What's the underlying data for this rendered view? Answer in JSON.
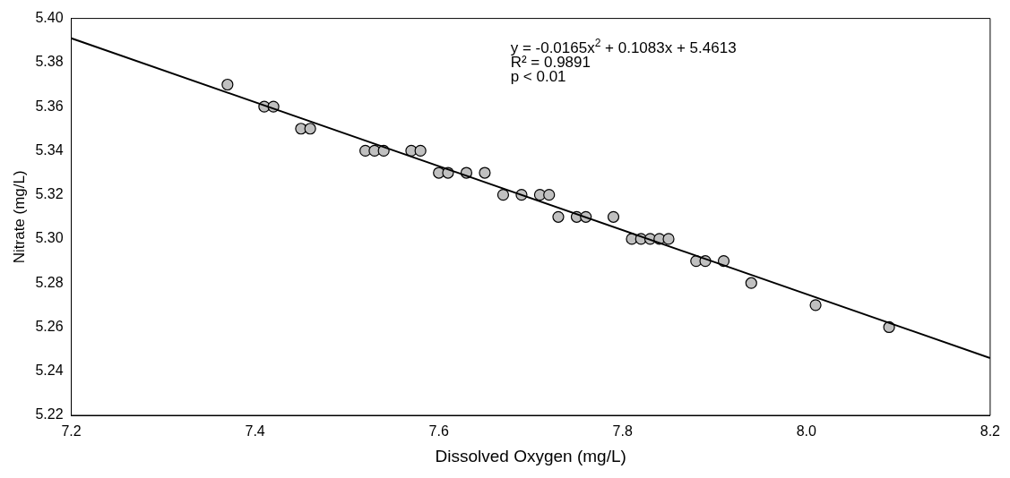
{
  "chart_data": {
    "type": "scatter",
    "xlabel": "Dissolved Oxygen (mg/L)",
    "ylabel": "Nitrate (mg/L)",
    "xlim": [
      7.2,
      8.2
    ],
    "xticks": [
      7.2,
      7.4,
      7.6,
      7.8,
      {
        "value": 8,
        "label": "8.0"
      },
      8.2
    ],
    "ylim": [
      5.22,
      5.4
    ],
    "yticks": [
      5.22,
      5.24,
      5.26,
      5.28,
      {
        "value": 5.3,
        "label": "5.30"
      },
      5.32,
      5.34,
      5.36,
      5.38,
      {
        "value": 5.4,
        "label": "5.40"
      }
    ],
    "grid": false,
    "legend": false,
    "marker": "circle",
    "annotations": [
      "y = -0.0165x$^{2}$ + 0.1083x + 5.4613",
      "R² = 0.9891",
      "p < 0.01"
    ],
    "series": [
      {
        "type": "scatter",
        "color": "#c0c0c0",
        "x": [
          7.37,
          7.41,
          7.42,
          7.45,
          7.46,
          7.52,
          7.53,
          7.54,
          7.57,
          7.58,
          7.6,
          7.61,
          7.63,
          7.65,
          7.67,
          7.69,
          7.71,
          7.72,
          7.73,
          7.75,
          7.76,
          7.79,
          7.81,
          7.82,
          7.83,
          7.84,
          7.85,
          7.88,
          7.89,
          7.91,
          7.94,
          8.01,
          8.09
        ],
        "values": [
          5.37,
          5.36,
          5.36,
          5.35,
          5.35,
          5.34,
          5.34,
          5.34,
          5.34,
          5.34,
          5.33,
          5.33,
          5.33,
          5.33,
          5.32,
          5.32,
          5.32,
          5.32,
          5.31,
          5.31,
          5.31,
          5.31,
          5.3,
          5.3,
          5.3,
          5.3,
          5.3,
          5.29,
          5.29,
          5.29,
          5.28,
          5.27,
          5.26
        ]
      },
      {
        "type": "line",
        "color": "#000000",
        "line_style": "solid",
        "marker": "none",
        "x": [
          7.2,
          8.2
        ],
        "values": [
          5.391,
          5.246
        ]
      }
    ]
  }
}
